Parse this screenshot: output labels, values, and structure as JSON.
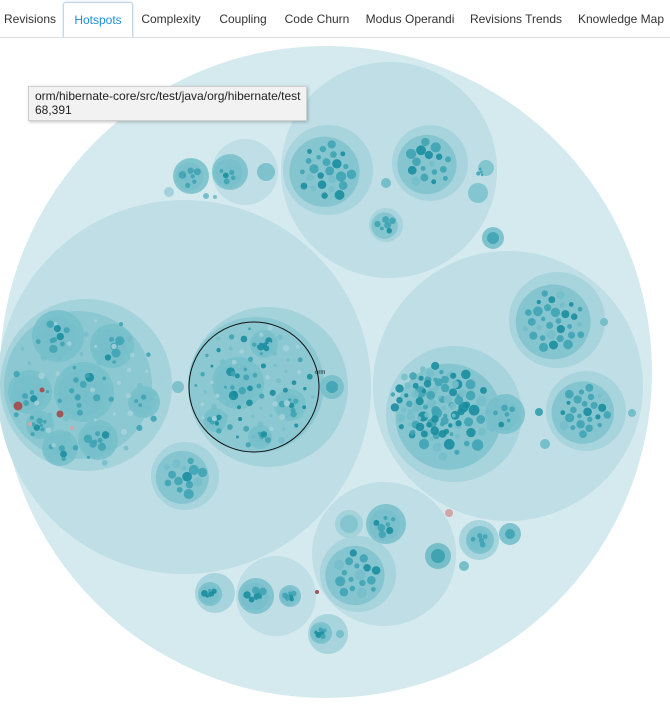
{
  "tabs": [
    {
      "label": "Revisions",
      "active": false
    },
    {
      "label": "Hotspots",
      "active": true
    },
    {
      "label": "Complexity",
      "active": false
    },
    {
      "label": "Coupling",
      "active": false
    },
    {
      "label": "Code Churn",
      "active": false
    },
    {
      "label": "Modus Operandi",
      "active": false
    },
    {
      "label": "Revisions Trends",
      "active": false
    },
    {
      "label": "Knowledge Map",
      "active": false
    }
  ],
  "tooltip": {
    "path": "orm/hibernate-core/src/test/java/org/hibernate/test",
    "value": "68,391"
  },
  "chart": {
    "type": "circle-packing",
    "selected_label": "orm",
    "colors": {
      "root": "#d4eaef",
      "module": "#bcdde4",
      "package": "#a3d2db",
      "inner": "#76bfca",
      "leaf": "#3fa3b2",
      "hot_leaf": "#1a8d9e",
      "hotspot_red": "#a05555",
      "hotspot_pink": "#d2a5a8",
      "selection": "#111111"
    }
  }
}
